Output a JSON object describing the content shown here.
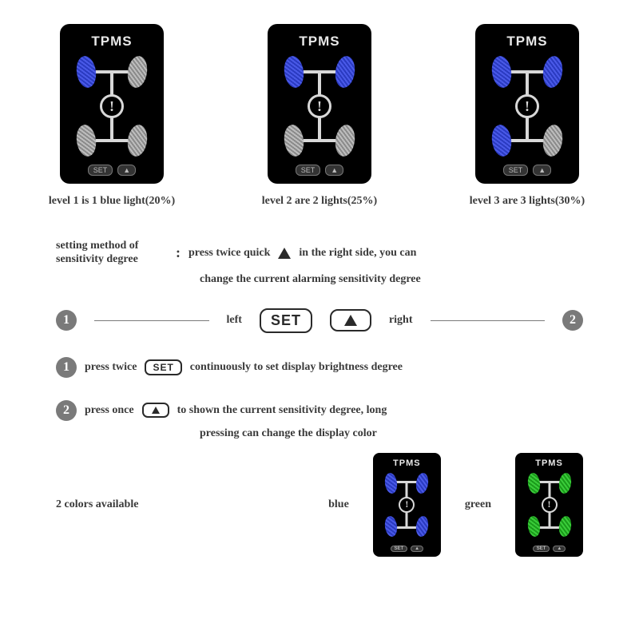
{
  "devices": [
    {
      "title": "TPMS",
      "tires": {
        "fl": "blue",
        "fr": "grey",
        "rl": "grey",
        "rr": "grey"
      },
      "caption": "level 1 is 1 blue light(20%)"
    },
    {
      "title": "TPMS",
      "tires": {
        "fl": "blue",
        "fr": "blue",
        "rl": "grey",
        "rr": "grey"
      },
      "caption": "level 2 are 2 lights(25%)"
    },
    {
      "title": "TPMS",
      "tires": {
        "fl": "blue",
        "fr": "blue",
        "rl": "blue",
        "rr": "grey"
      },
      "caption": "level 3 are 3 lights(30%)"
    }
  ],
  "device_buttons": {
    "set": "SET",
    "arrow": "▲"
  },
  "center_glyph": "!",
  "setting_label": "setting method of sensitivity degree",
  "colon": ":",
  "setting_line1_a": "press twice quick",
  "setting_line1_b": "in the right side, you can",
  "setting_line2": "change the current alarming sensitivity degree",
  "btnbar": {
    "num_left": "1",
    "left_label": "left",
    "set_label": "SET",
    "right_label": "right",
    "num_right": "2"
  },
  "step1": {
    "num": "1",
    "a": "press twice",
    "btn": "SET",
    "b": "continuously to set display brightness degree"
  },
  "step2": {
    "num": "2",
    "a": "press once",
    "b": "to shown the current sensitivity degree, long",
    "c": "pressing can change the display color"
  },
  "colors": {
    "label": "2 colors available",
    "blue_label": "blue",
    "green_label": "green",
    "blue_device": {
      "title": "TPMS",
      "tire_color": "blue"
    },
    "green_device": {
      "title": "TPMS",
      "tire_color": "green"
    }
  },
  "tire_colors": {
    "blue": "#4a5ae8",
    "grey": "#bebebe",
    "green": "#3acc3a"
  }
}
